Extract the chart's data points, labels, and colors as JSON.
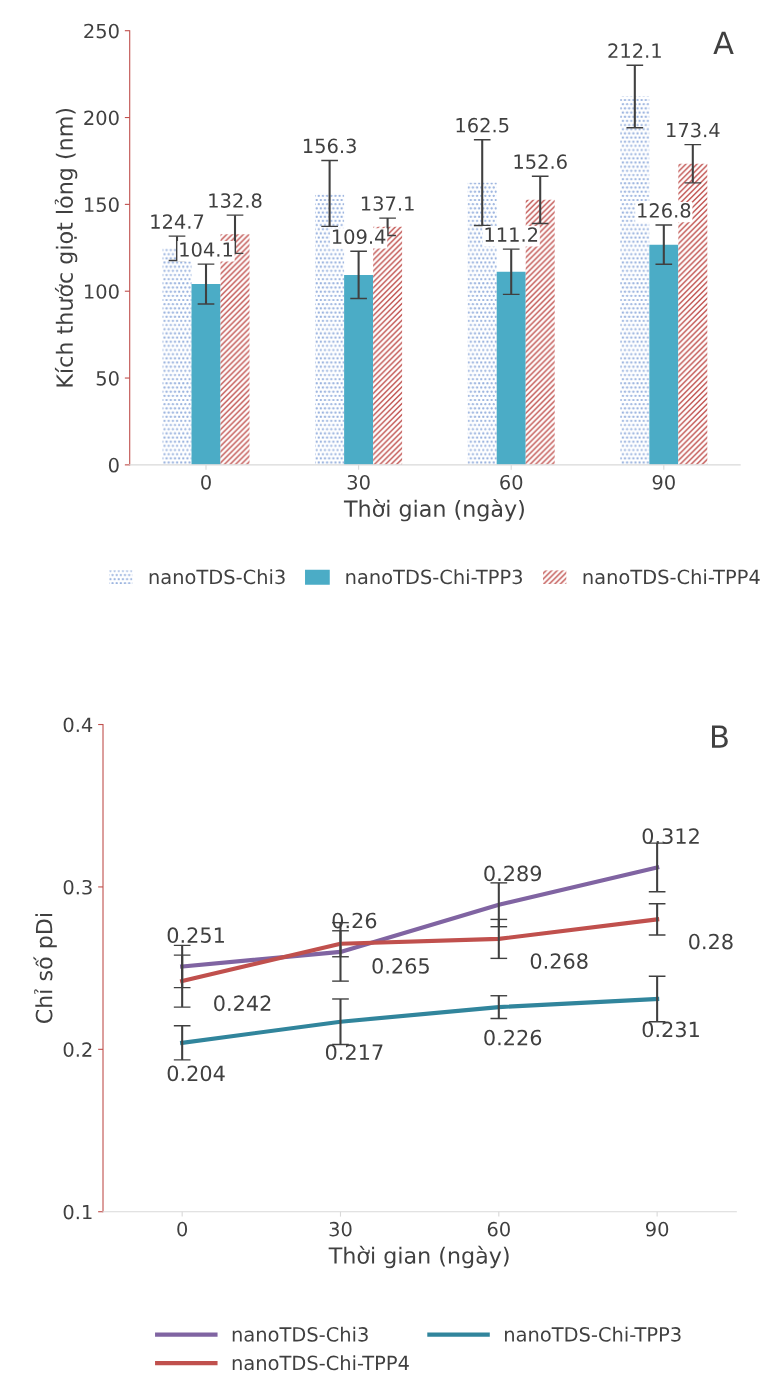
{
  "chart_data": [
    {
      "type": "bar",
      "ylabel": "Kích thước giọt lỏng (nm)",
      "xlabel": "Thời gian (ngày)",
      "annotations": [
        "A"
      ],
      "categories": [
        "0",
        "30",
        "60",
        "90"
      ],
      "ylim": [
        0,
        250
      ],
      "yticks": [
        0,
        50,
        100,
        150,
        200,
        250
      ],
      "grid": false,
      "legend": "bottom",
      "data_labels": true,
      "series": [
        {
          "name": "nanoTDS-Chi3",
          "color": "#8eaadb",
          "values": [
            124.7,
            156.3,
            162.5,
            212.1
          ],
          "errors": [
            7,
            19,
            24.7,
            18
          ]
        },
        {
          "name": "nanoTDS-Chi-TPP3",
          "color": "#4bacc6",
          "values": [
            104.1,
            109.4,
            111.2,
            126.8
          ],
          "errors": [
            11.5,
            13.6,
            13,
            11.3
          ]
        },
        {
          "name": "nanoTDS-Chi-TPP4",
          "color": "#c0504d",
          "values": [
            132.8,
            137.1,
            152.6,
            173.4
          ],
          "errors": [
            11,
            5,
            13.6,
            11
          ]
        }
      ]
    },
    {
      "type": "line",
      "ylabel": "Chỉ số pDi",
      "xlabel": "Thời gian (ngày)",
      "annotations": [
        "B"
      ],
      "categories": [
        "0",
        "30",
        "60",
        "90"
      ],
      "ylim": [
        0.1,
        0.4
      ],
      "yticks": [
        0.1,
        0.2,
        0.3,
        0.4
      ],
      "grid": false,
      "legend": "bottom",
      "data_labels": true,
      "marker": "none",
      "line_style": "solid",
      "series": [
        {
          "name": "nanoTDS-Chi3",
          "color": "#8064a2",
          "values": [
            0.251,
            0.26,
            0.289,
            0.312
          ],
          "errors": [
            0.013,
            0.018,
            0.0135,
            0.015
          ]
        },
        {
          "name": "nanoTDS-Chi-TPP3",
          "color": "#31859c",
          "values": [
            0.204,
            0.217,
            0.226,
            0.231
          ],
          "errors": [
            0.0105,
            0.014,
            0.007,
            0.014
          ]
        },
        {
          "name": "nanoTDS-Chi-TPP4",
          "color": "#c0504d",
          "values": [
            0.242,
            0.265,
            0.268,
            0.28
          ],
          "errors": [
            0.016,
            0.008,
            0.012,
            0.0096
          ]
        }
      ]
    }
  ]
}
